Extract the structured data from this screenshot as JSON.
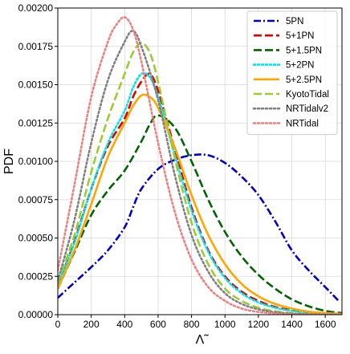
{
  "chart_data": {
    "type": "line",
    "title": "",
    "xlabel": "Λ̃",
    "ylabel": "PDF",
    "xlim": [
      0,
      1700
    ],
    "ylim": [
      0,
      0.002
    ],
    "x_ticks": [
      0,
      200,
      400,
      600,
      800,
      1000,
      1200,
      1400,
      1600
    ],
    "x_tick_labels": [
      "0",
      "200",
      "400",
      "600",
      "800",
      "1000",
      "1200",
      "1400",
      "1600"
    ],
    "y_ticks": [
      0,
      0.00025,
      0.0005,
      0.00075,
      0.001,
      0.00125,
      0.0015,
      0.00175,
      0.002
    ],
    "y_tick_labels": [
      "0.00000",
      "0.00025",
      "0.00050",
      "0.00075",
      "0.00100",
      "0.00125",
      "0.00150",
      "0.00175",
      "0.00200"
    ],
    "grid": true,
    "legend_position": "top-right",
    "series": [
      {
        "name": "5PN",
        "color": "#0000cc",
        "line_style": "dash-dot",
        "points": [
          [
            0,
            0.00011
          ],
          [
            100,
            0.00021
          ],
          [
            200,
            0.00031
          ],
          [
            300,
            0.00042
          ],
          [
            400,
            0.00057
          ],
          [
            450,
            0.0007
          ],
          [
            500,
            0.00082
          ],
          [
            600,
            0.00095
          ],
          [
            700,
            0.00101
          ],
          [
            800,
            0.00104
          ],
          [
            900,
            0.00104
          ],
          [
            1000,
            0.00099
          ],
          [
            1100,
            0.0009
          ],
          [
            1200,
            0.00078
          ],
          [
            1300,
            0.00061
          ],
          [
            1400,
            0.00042
          ],
          [
            1500,
            0.00029
          ],
          [
            1600,
            0.00018
          ],
          [
            1680,
            9e-05
          ]
        ]
      },
      {
        "name": "5+1PN",
        "color": "#e00000",
        "line_style": "dashed",
        "points": [
          [
            0,
            0.00019
          ],
          [
            100,
            0.00048
          ],
          [
            200,
            0.00082
          ],
          [
            300,
            0.0011
          ],
          [
            400,
            0.00128
          ],
          [
            450,
            0.00142
          ],
          [
            500,
            0.00152
          ],
          [
            550,
            0.00157
          ],
          [
            600,
            0.00146
          ],
          [
            700,
            0.00108
          ],
          [
            800,
            0.0007
          ],
          [
            900,
            0.00042
          ],
          [
            1000,
            0.00025
          ],
          [
            1100,
            0.00015
          ],
          [
            1200,
            9e-05
          ],
          [
            1300,
            5e-05
          ],
          [
            1400,
            3e-05
          ],
          [
            1500,
            1.5e-05
          ],
          [
            1600,
            7e-06
          ],
          [
            1700,
            3e-06
          ]
        ]
      },
      {
        "name": "5+1.5PN",
        "color": "#006400",
        "line_style": "dashed",
        "points": [
          [
            0,
            0.00017
          ],
          [
            100,
            0.00041
          ],
          [
            200,
            0.00065
          ],
          [
            300,
            0.00081
          ],
          [
            400,
            0.00094
          ],
          [
            500,
            0.00113
          ],
          [
            550,
            0.00124
          ],
          [
            600,
            0.0013
          ],
          [
            700,
            0.00122
          ],
          [
            800,
            0.001
          ],
          [
            900,
            0.00075
          ],
          [
            1000,
            0.00054
          ],
          [
            1100,
            0.00038
          ],
          [
            1200,
            0.00026
          ],
          [
            1300,
            0.00017
          ],
          [
            1400,
            0.0001
          ],
          [
            1500,
            5.5e-05
          ],
          [
            1600,
            2.5e-05
          ],
          [
            1700,
            1e-05
          ]
        ]
      },
      {
        "name": "5+2PN",
        "color": "#00e5ee",
        "line_style": "dotted",
        "points": [
          [
            0,
            0.00019
          ],
          [
            100,
            0.00047
          ],
          [
            200,
            0.00082
          ],
          [
            300,
            0.00112
          ],
          [
            400,
            0.00133
          ],
          [
            450,
            0.00148
          ],
          [
            500,
            0.00157
          ],
          [
            550,
            0.00155
          ],
          [
            600,
            0.00142
          ],
          [
            700,
            0.00104
          ],
          [
            800,
            0.00068
          ],
          [
            900,
            0.00041
          ],
          [
            1000,
            0.00024
          ],
          [
            1100,
            0.00014
          ],
          [
            1200,
            8e-05
          ],
          [
            1300,
            4.5e-05
          ],
          [
            1400,
            2.5e-05
          ],
          [
            1500,
            1.2e-05
          ],
          [
            1600,
            6e-06
          ],
          [
            1700,
            3e-06
          ]
        ]
      },
      {
        "name": "5+2.5PN",
        "color": "#ffa500",
        "line_style": "solid",
        "points": [
          [
            0,
            0.00017
          ],
          [
            100,
            0.00042
          ],
          [
            200,
            0.00072
          ],
          [
            300,
            0.00103
          ],
          [
            400,
            0.00125
          ],
          [
            450,
            0.00136
          ],
          [
            500,
            0.00143
          ],
          [
            550,
            0.00142
          ],
          [
            600,
            0.00135
          ],
          [
            700,
            0.00109
          ],
          [
            800,
            0.00078
          ],
          [
            900,
            0.00052
          ],
          [
            1000,
            0.00033
          ],
          [
            1100,
            0.0002
          ],
          [
            1200,
            0.00012
          ],
          [
            1300,
            7e-05
          ],
          [
            1400,
            4e-05
          ],
          [
            1500,
            2e-05
          ],
          [
            1600,
            1e-05
          ],
          [
            1700,
            5e-06
          ]
        ]
      },
      {
        "name": "KyotoTidal",
        "color": "#9acd32",
        "line_style": "dashed",
        "points": [
          [
            0,
            0.00021
          ],
          [
            100,
            0.00052
          ],
          [
            200,
            0.00093
          ],
          [
            300,
            0.00128
          ],
          [
            400,
            0.00157
          ],
          [
            450,
            0.00171
          ],
          [
            500,
            0.00177
          ],
          [
            550,
            0.00171
          ],
          [
            600,
            0.00152
          ],
          [
            700,
            0.00102
          ],
          [
            800,
            0.0006
          ],
          [
            900,
            0.00033
          ],
          [
            1000,
            0.00017
          ],
          [
            1100,
            9e-05
          ],
          [
            1200,
            4.5e-05
          ],
          [
            1300,
            2.2e-05
          ],
          [
            1400,
            1e-05
          ],
          [
            1500,
            5e-06
          ],
          [
            1600,
            2e-06
          ],
          [
            1700,
            1e-06
          ]
        ]
      },
      {
        "name": "NRTidalv2",
        "color": "#808080",
        "line_style": "dotted",
        "points": [
          [
            0,
            0.00022
          ],
          [
            100,
            0.00062
          ],
          [
            200,
            0.00112
          ],
          [
            300,
            0.00153
          ],
          [
            400,
            0.00178
          ],
          [
            450,
            0.00185
          ],
          [
            500,
            0.00175
          ],
          [
            600,
            0.0014
          ],
          [
            700,
            0.00091
          ],
          [
            800,
            0.00052
          ],
          [
            900,
            0.00028
          ],
          [
            1000,
            0.00014
          ],
          [
            1100,
            7e-05
          ],
          [
            1200,
            3.5e-05
          ],
          [
            1300,
            1.6e-05
          ],
          [
            1400,
            7e-06
          ],
          [
            1500,
            3e-06
          ],
          [
            1600,
            1e-06
          ],
          [
            1700,
            5e-07
          ]
        ]
      },
      {
        "name": "NRTidal",
        "color": "#f08080",
        "line_style": "dotted",
        "points": [
          [
            0,
            0.00029
          ],
          [
            100,
            0.00085
          ],
          [
            200,
            0.00142
          ],
          [
            300,
            0.00178
          ],
          [
            350,
            0.00189
          ],
          [
            400,
            0.00194
          ],
          [
            450,
            0.00186
          ],
          [
            500,
            0.00165
          ],
          [
            600,
            0.00112
          ],
          [
            700,
            0.00067
          ],
          [
            800,
            0.00036
          ],
          [
            900,
            0.00018
          ],
          [
            1000,
            9e-05
          ],
          [
            1100,
            4e-05
          ],
          [
            1200,
            1.8e-05
          ],
          [
            1300,
            8e-06
          ],
          [
            1400,
            3e-06
          ],
          [
            1500,
            1e-06
          ],
          [
            1600,
            5e-07
          ],
          [
            1700,
            2e-07
          ]
        ]
      }
    ]
  }
}
